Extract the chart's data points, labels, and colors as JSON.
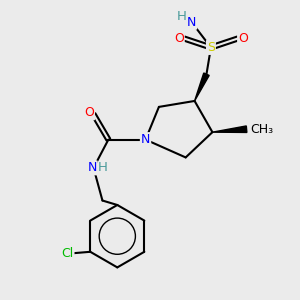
{
  "background_color": "#ebebeb",
  "atom_colors": {
    "N": "#0000ff",
    "O": "#ff0000",
    "S": "#cccc00",
    "Cl": "#00bb00",
    "C": "#000000",
    "H": "#4a9a9a"
  },
  "font_size_atoms": 9,
  "font_size_small": 7.5
}
